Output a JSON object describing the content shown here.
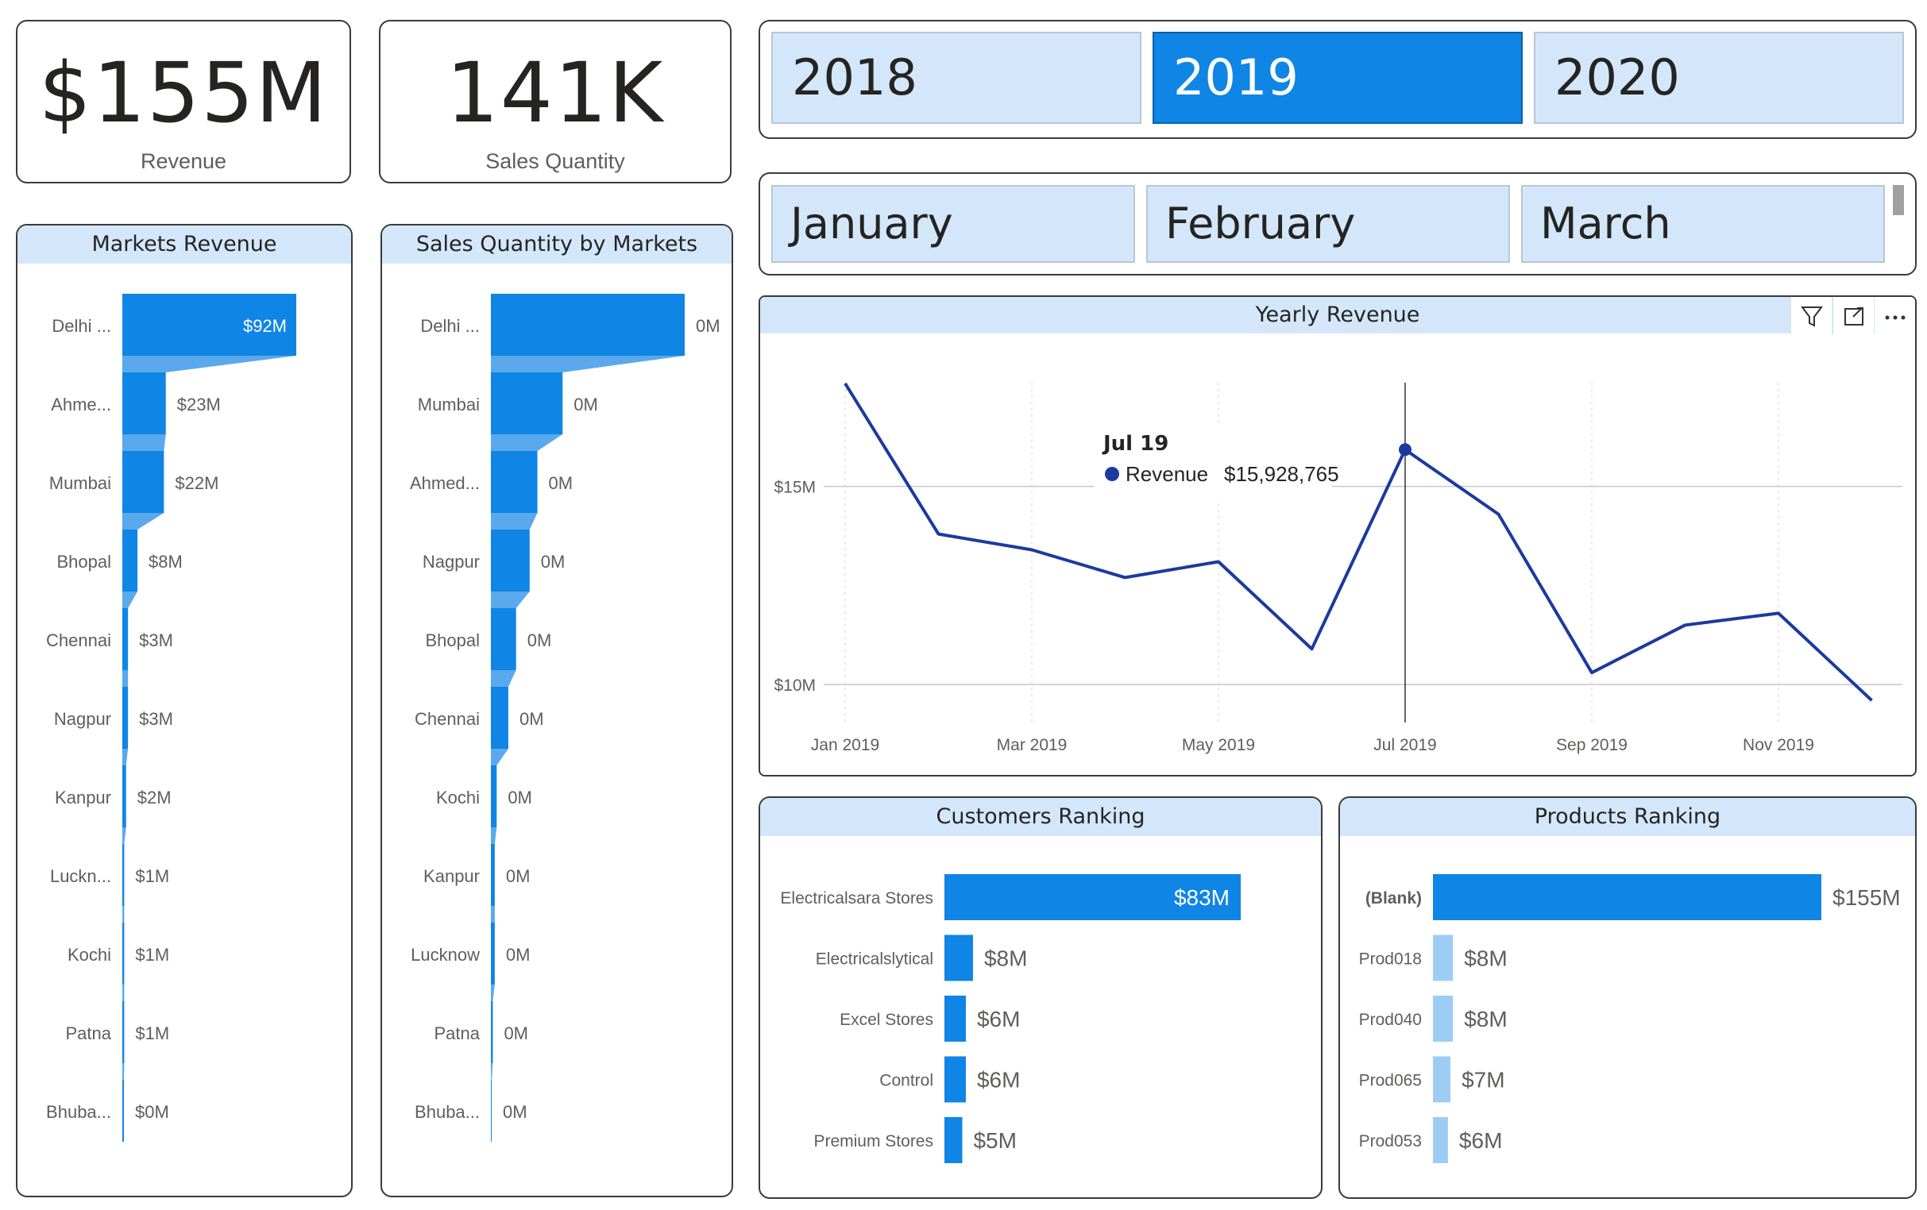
{
  "kpis": {
    "revenue": {
      "value": "$155M",
      "label": "Revenue"
    },
    "sales_qty": {
      "value": "141K",
      "label": "Sales Quantity"
    }
  },
  "year_slicer": {
    "items": [
      "2018",
      "2019",
      "2020"
    ],
    "selected": "2019"
  },
  "month_slicer": {
    "items": [
      "January",
      "February",
      "March"
    ]
  },
  "markets_revenue": {
    "title": "Markets Revenue",
    "rows": [
      {
        "label": "Delhi ...",
        "value": 92,
        "text": "$92M"
      },
      {
        "label": "Ahme...",
        "value": 23,
        "text": "$23M"
      },
      {
        "label": "Mumbai",
        "value": 22,
        "text": "$22M"
      },
      {
        "label": "Bhopal",
        "value": 8,
        "text": "$8M"
      },
      {
        "label": "Chennai",
        "value": 3,
        "text": "$3M"
      },
      {
        "label": "Nagpur",
        "value": 3,
        "text": "$3M"
      },
      {
        "label": "Kanpur",
        "value": 2,
        "text": "$2M"
      },
      {
        "label": "Luckn...",
        "value": 1,
        "text": "$1M"
      },
      {
        "label": "Kochi",
        "value": 1,
        "text": "$1M"
      },
      {
        "label": "Patna",
        "value": 1,
        "text": "$1M"
      },
      {
        "label": "Bhuba...",
        "value": 0.3,
        "text": "$0M"
      }
    ]
  },
  "sales_qty_markets": {
    "title": "Sales Quantity by Markets",
    "rows": [
      {
        "label": "Delhi ...",
        "value": 100,
        "text": "0M"
      },
      {
        "label": "Mumbai",
        "value": 37,
        "text": "0M"
      },
      {
        "label": "Ahmed...",
        "value": 24,
        "text": "0M"
      },
      {
        "label": "Nagpur",
        "value": 20,
        "text": "0M"
      },
      {
        "label": "Bhopal",
        "value": 13,
        "text": "0M"
      },
      {
        "label": "Chennai",
        "value": 9,
        "text": "0M"
      },
      {
        "label": "Kochi",
        "value": 3,
        "text": "0M"
      },
      {
        "label": "Kanpur",
        "value": 2,
        "text": "0M"
      },
      {
        "label": "Lucknow",
        "value": 2,
        "text": "0M"
      },
      {
        "label": "Patna",
        "value": 1,
        "text": "0M"
      },
      {
        "label": "Bhuba...",
        "value": 0,
        "text": "0M"
      }
    ]
  },
  "yearly_revenue": {
    "title": "Yearly Revenue",
    "tooltip": {
      "title": "Jul 19",
      "series": "Revenue",
      "value": "$15,928,765"
    },
    "icons": [
      "filter-icon",
      "focus-mode-icon",
      "more-options-icon"
    ]
  },
  "customers_ranking": {
    "title": "Customers Ranking",
    "rows": [
      {
        "label": "Electricalsara Stores",
        "value": 83,
        "text": "$83M"
      },
      {
        "label": "Electricalslytical",
        "value": 8,
        "text": "$8M"
      },
      {
        "label": "Excel Stores",
        "value": 6,
        "text": "$6M"
      },
      {
        "label": "Control",
        "value": 6,
        "text": "$6M"
      },
      {
        "label": "Premium Stores",
        "value": 5,
        "text": "$5M"
      }
    ]
  },
  "products_ranking": {
    "title": "Products Ranking",
    "rows": [
      {
        "label": "(Blank)",
        "value": 155,
        "text": "$155M"
      },
      {
        "label": "Prod018",
        "value": 8,
        "text": "$8M"
      },
      {
        "label": "Prod040",
        "value": 8,
        "text": "$8M"
      },
      {
        "label": "Prod065",
        "value": 7,
        "text": "$7M"
      },
      {
        "label": "Prod053",
        "value": 6,
        "text": "$6M"
      }
    ]
  },
  "chart_data": [
    {
      "type": "bar",
      "title": "Markets Revenue",
      "categories": [
        "Delhi ...",
        "Ahme...",
        "Mumbai",
        "Bhopal",
        "Chennai",
        "Nagpur",
        "Kanpur",
        "Luckn...",
        "Kochi",
        "Patna",
        "Bhuba..."
      ],
      "values": [
        92,
        23,
        22,
        8,
        3,
        3,
        2,
        1,
        1,
        1,
        0.3
      ],
      "data_labels": [
        "$92M",
        "$23M",
        "$22M",
        "$8M",
        "$3M",
        "$3M",
        "$2M",
        "$1M",
        "$1M",
        "$1M",
        "$0M"
      ]
    },
    {
      "type": "bar",
      "title": "Sales Quantity by Markets",
      "categories": [
        "Delhi ...",
        "Mumbai",
        "Ahmed...",
        "Nagpur",
        "Bhopal",
        "Chennai",
        "Kochi",
        "Kanpur",
        "Lucknow",
        "Patna",
        "Bhuba..."
      ],
      "values": [
        100,
        37,
        24,
        20,
        13,
        9,
        3,
        2,
        2,
        1,
        0
      ],
      "data_labels": [
        "0M",
        "0M",
        "0M",
        "0M",
        "0M",
        "0M",
        "0M",
        "0M",
        "0M",
        "0M",
        "0M"
      ]
    },
    {
      "type": "line",
      "title": "Yearly Revenue",
      "x": [
        "Jan 2019",
        "Feb 2019",
        "Mar 2019",
        "Apr 2019",
        "May 2019",
        "Jun 2019",
        "Jul 2019",
        "Aug 2019",
        "Sep 2019",
        "Oct 2019",
        "Nov 2019",
        "Dec 2019"
      ],
      "x_tick_labels": [
        "Jan 2019",
        "Mar 2019",
        "May 2019",
        "Jul 2019",
        "Sep 2019",
        "Nov 2019"
      ],
      "y_tick_labels": [
        "$10M",
        "$15M"
      ],
      "series": [
        {
          "name": "Revenue",
          "values": [
            17.6,
            13.8,
            13.4,
            12.7,
            13.1,
            10.9,
            15.93,
            14.3,
            10.3,
            11.5,
            11.8,
            9.6
          ]
        }
      ],
      "ylim": [
        8,
        18.5
      ],
      "color": "#1c3a9e"
    },
    {
      "type": "bar",
      "title": "Customers Ranking",
      "categories": [
        "Electricalsara Stores",
        "Electricalslytical",
        "Excel Stores",
        "Control",
        "Premium Stores"
      ],
      "values": [
        83,
        8,
        6,
        6,
        5
      ],
      "data_labels": [
        "$83M",
        "$8M",
        "$6M",
        "$6M",
        "$5M"
      ]
    },
    {
      "type": "bar",
      "title": "Products Ranking",
      "categories": [
        "(Blank)",
        "Prod018",
        "Prod040",
        "Prod065",
        "Prod053"
      ],
      "values": [
        155,
        8,
        8,
        7,
        6
      ],
      "data_labels": [
        "$155M",
        "$8M",
        "$8M",
        "$7M",
        "$6M"
      ]
    }
  ],
  "colors": {
    "accent": "#0f85e6",
    "header_bg": "#d4e7fa",
    "line": "#1c3a9e",
    "light_bar": "#9dcdf5"
  }
}
